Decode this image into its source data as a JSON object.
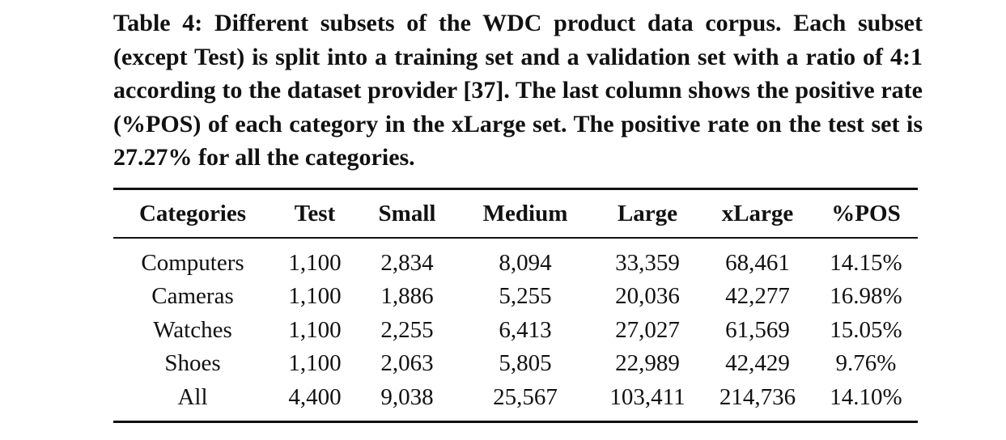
{
  "caption": {
    "label": "Table 4:",
    "text": "Different subsets of the WDC product data corpus. Each subset (except Test) is split into a training set and a validation set with a ratio of 4:1 according to the dataset provider [37]. The last column shows the positive rate (%POS) of each category in the xLarge set. The positive rate on the test set is 27.27% for all the categories."
  },
  "table": {
    "headers": [
      "Categories",
      "Test",
      "Small",
      "Medium",
      "Large",
      "xLarge",
      "%POS"
    ],
    "rows": [
      [
        "Computers",
        "1,100",
        "2,834",
        "8,094",
        "33,359",
        "68,461",
        "14.15%"
      ],
      [
        "Cameras",
        "1,100",
        "1,886",
        "5,255",
        "20,036",
        "42,277",
        "16.98%"
      ],
      [
        "Watches",
        "1,100",
        "2,255",
        "6,413",
        "27,027",
        "61,569",
        "15.05%"
      ],
      [
        "Shoes",
        "1,100",
        "2,063",
        "5,805",
        "22,989",
        "42,429",
        "9.76%"
      ],
      [
        "All",
        "4,400",
        "9,038",
        "25,567",
        "103,411",
        "214,736",
        "14.10%"
      ]
    ]
  }
}
